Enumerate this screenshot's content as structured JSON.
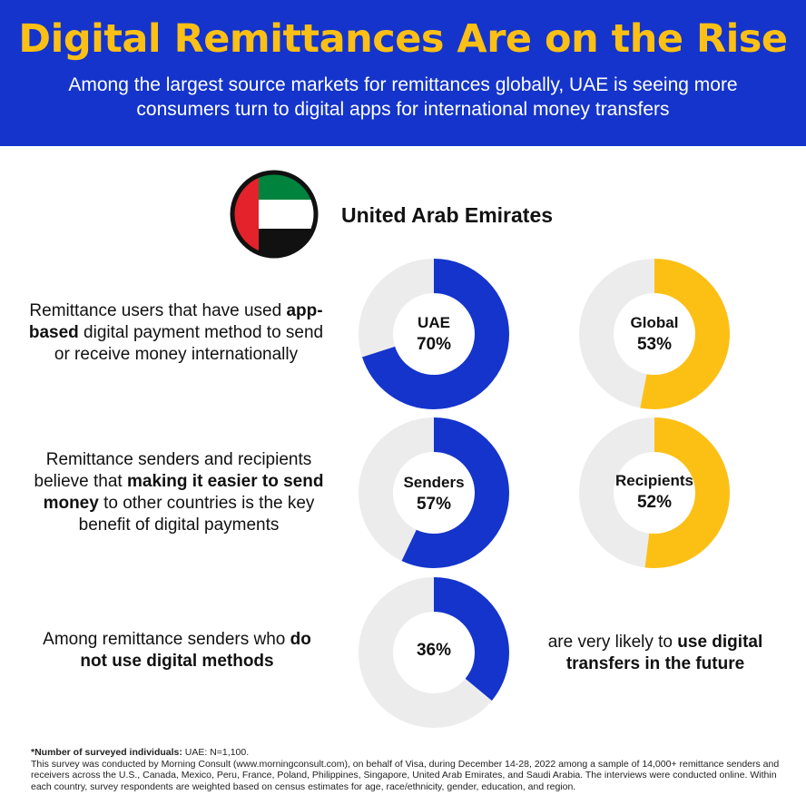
{
  "header": {
    "title": "Digital Remittances Are on the Rise",
    "subtitle": "Among the largest source markets for remittances globally, UAE is seeing more consumers turn to digital apps for international money transfers"
  },
  "country": {
    "name": "United Arab Emirates",
    "flag_icon": "uae-flag-icon"
  },
  "colors": {
    "brand_blue": "#1434cb",
    "accent_yellow": "#fcc015",
    "ring_track": "#ececec"
  },
  "stats": [
    {
      "text_parts": [
        "Remittance users that have used ",
        "app-based",
        " digital payment method to send or receive money internationally"
      ],
      "rings": [
        {
          "label": "UAE",
          "value": "70%",
          "percent": 70,
          "color": "#1434cb"
        },
        {
          "label": "Global",
          "value": "53%",
          "percent": 53,
          "color": "#fcc015"
        }
      ]
    },
    {
      "text_parts": [
        "Remittance senders and recipients believe that ",
        "making it easier to send money",
        " to other countries is the key benefit of digital payments"
      ],
      "rings": [
        {
          "label": "Senders",
          "value": "57%",
          "percent": 57,
          "color": "#1434cb"
        },
        {
          "label": "Recipients",
          "value": "52%",
          "percent": 52,
          "color": "#fcc015"
        }
      ]
    },
    {
      "text_parts": [
        "Among remittance senders who ",
        "do not use digital methods"
      ],
      "rings": [
        {
          "label": "",
          "value": "36%",
          "percent": 36,
          "color": "#1434cb"
        }
      ],
      "trailing_parts": [
        "are very likely to ",
        "use digital transfers in the future"
      ]
    }
  ],
  "footer": {
    "note_label": "*Number of surveyed individuals:",
    "note_value": "UAE: N=1,100.",
    "methodology": "This survey was conducted by Morning Consult (www.morningconsult.com), on behalf of Visa, during December 14-28, 2022 among a sample of 14,000+ remittance senders and receivers across the U.S., Canada, Mexico, Peru, France, Poland, Philippines, Singapore, United Arab Emirates, and Saudi Arabia. The interviews were conducted online. Within each country, survey respondents are weighted based on census estimates for age, race/ethnicity, gender, education, and region."
  }
}
